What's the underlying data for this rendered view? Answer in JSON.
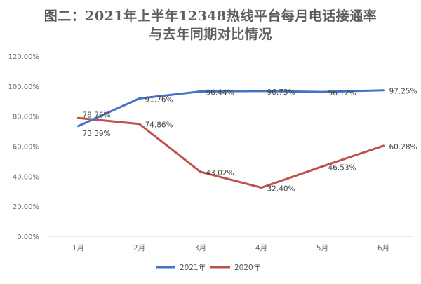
{
  "chart_data": {
    "type": "line",
    "title_line1": "图二：2021年上半年12348热线平台每月电话接通率",
    "title_line2": "与去年同期对比情况",
    "categories": [
      "1月",
      "2月",
      "3月",
      "4月",
      "5月",
      "6月"
    ],
    "ylim": [
      0,
      120
    ],
    "yticks": [
      "0.00%",
      "20.00%",
      "40.00%",
      "60.00%",
      "80.00%",
      "100.00%",
      "120.00%"
    ],
    "grid": false,
    "legend_position": "bottom",
    "series": [
      {
        "name": "2021年",
        "color": "#4472c4",
        "values": [
          73.39,
          91.76,
          96.44,
          96.73,
          96.12,
          97.25
        ],
        "labels": [
          "73.39%",
          "91.76%",
          "96.44%",
          "96.73%",
          "96.12%",
          "97.25%"
        ]
      },
      {
        "name": "2020年",
        "color": "#c0504d",
        "values": [
          78.76,
          74.86,
          43.02,
          32.4,
          46.53,
          60.28
        ],
        "labels": [
          "78.76%",
          "74.86%",
          "43.02%",
          "32.40%",
          "46.53%",
          "60.28%"
        ]
      }
    ]
  }
}
